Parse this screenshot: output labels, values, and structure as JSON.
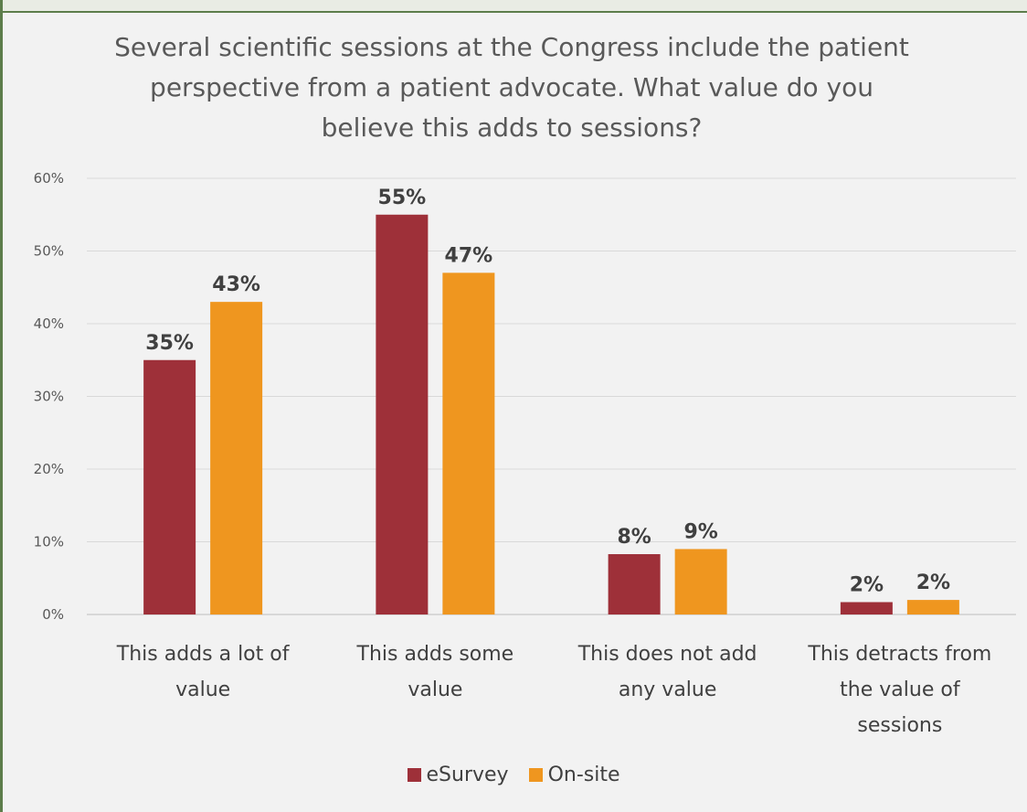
{
  "chart_data": {
    "type": "bar",
    "title": "Several scientific sessions at the Congress include the patient perspective from a patient advocate. What value do you believe this adds to sessions?",
    "categories": [
      [
        "This adds a lot of",
        "value"
      ],
      [
        "This adds some",
        "value"
      ],
      [
        "This does not add",
        "any value"
      ],
      [
        "This detracts from",
        "the value of",
        "sessions"
      ]
    ],
    "series": [
      {
        "name": "eSurvey",
        "color": "#9e3039",
        "values": [
          35,
          55,
          8.3,
          1.7
        ],
        "labels": [
          "35%",
          "55%",
          "8%",
          "2%"
        ]
      },
      {
        "name": "On-site",
        "color": "#ef961f",
        "values": [
          43,
          47,
          9,
          2
        ],
        "labels": [
          "43%",
          "47%",
          "9%",
          "2%"
        ]
      }
    ],
    "yticks": [
      "0%",
      "10%",
      "20%",
      "30%",
      "40%",
      "50%",
      "60%"
    ],
    "ylim": [
      0,
      60
    ],
    "grid": true,
    "legend": "bottom"
  }
}
